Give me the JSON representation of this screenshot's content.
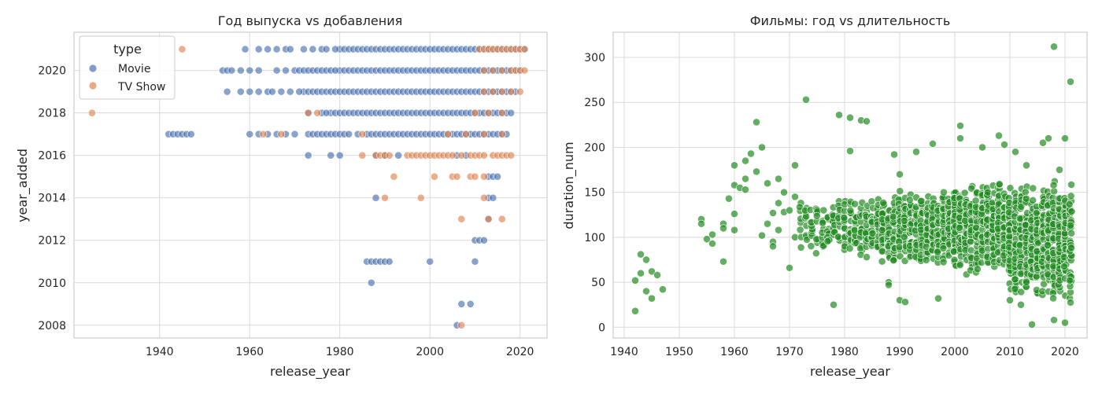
{
  "chart_data": [
    {
      "type": "scatter",
      "title": "Год выпуска vs добавления",
      "xlabel": "release_year",
      "ylabel": "year_added",
      "xlim": [
        1921,
        2026
      ],
      "ylim": [
        2007.4,
        2021.8
      ],
      "xticks": [
        1940,
        1960,
        1980,
        2000,
        2020
      ],
      "yticks": [
        2008,
        2010,
        2012,
        2014,
        2016,
        2018,
        2020
      ],
      "grid": true,
      "legend": {
        "title": "type",
        "placement": "top-left",
        "entries": [
          {
            "label": "Movie",
            "color": "#4c72b0"
          },
          {
            "label": "TV Show",
            "color": "#dd8452"
          }
        ]
      },
      "series": [
        {
          "name": "Movie",
          "color": "#4c72b0",
          "segments": [
            {
              "y": 2021,
              "x_from": 1980,
              "x_to": 2021
            },
            {
              "y": 2020,
              "x_from": 1980,
              "x_to": 2020
            },
            {
              "y": 2019,
              "x_from": 1972,
              "x_to": 2019
            },
            {
              "y": 2018,
              "x_from": 1978,
              "x_to": 2018
            },
            {
              "y": 2017,
              "x_from": 1986,
              "x_to": 2017
            }
          ],
          "points": [
            [
              1959,
              2021
            ],
            [
              1962,
              2021
            ],
            [
              1964,
              2021
            ],
            [
              1966,
              2021
            ],
            [
              1968,
              2021
            ],
            [
              1969,
              2021
            ],
            [
              1972,
              2021
            ],
            [
              1974,
              2021
            ],
            [
              1976,
              2021
            ],
            [
              1977,
              2021
            ],
            [
              1979,
              2021
            ],
            [
              1954,
              2020
            ],
            [
              1955,
              2020
            ],
            [
              1956,
              2020
            ],
            [
              1958,
              2020
            ],
            [
              1960,
              2020
            ],
            [
              1962,
              2020
            ],
            [
              1966,
              2020
            ],
            [
              1968,
              2020
            ],
            [
              1970,
              2020
            ],
            [
              1971,
              2020
            ],
            [
              1972,
              2020
            ],
            [
              1973,
              2020
            ],
            [
              1974,
              2020
            ],
            [
              1975,
              2020
            ],
            [
              1976,
              2020
            ],
            [
              1977,
              2020
            ],
            [
              1978,
              2020
            ],
            [
              1979,
              2020
            ],
            [
              1955,
              2019
            ],
            [
              1958,
              2019
            ],
            [
              1960,
              2019
            ],
            [
              1962,
              2019
            ],
            [
              1964,
              2019
            ],
            [
              1965,
              2019
            ],
            [
              1967,
              2019
            ],
            [
              1969,
              2019
            ],
            [
              1971,
              2019
            ],
            [
              1973,
              2018
            ],
            [
              1976,
              2018
            ],
            [
              1977,
              2018
            ],
            [
              1942,
              2017
            ],
            [
              1943,
              2017
            ],
            [
              1944,
              2017
            ],
            [
              1945,
              2017
            ],
            [
              1946,
              2017
            ],
            [
              1947,
              2017
            ],
            [
              1960,
              2017
            ],
            [
              1962,
              2017
            ],
            [
              1964,
              2017
            ],
            [
              1966,
              2017
            ],
            [
              1968,
              2017
            ],
            [
              1970,
              2017
            ],
            [
              1973,
              2017
            ],
            [
              1974,
              2017
            ],
            [
              1975,
              2017
            ],
            [
              1976,
              2017
            ],
            [
              1977,
              2017
            ],
            [
              1978,
              2017
            ],
            [
              1979,
              2017
            ],
            [
              1980,
              2017
            ],
            [
              1981,
              2017
            ],
            [
              1982,
              2017
            ],
            [
              1984,
              2017
            ],
            [
              1973,
              2016
            ],
            [
              1978,
              2016
            ],
            [
              1980,
              2016
            ],
            [
              1988,
              2016
            ],
            [
              1990,
              2016
            ],
            [
              1993,
              2016
            ],
            [
              2006,
              2016
            ],
            [
              2008,
              2016
            ],
            [
              2013,
              2015
            ],
            [
              2014,
              2015
            ],
            [
              2015,
              2015
            ],
            [
              1988,
              2014
            ],
            [
              2013,
              2014
            ],
            [
              2014,
              2014
            ],
            [
              2013,
              2013
            ],
            [
              2010,
              2012
            ],
            [
              2011,
              2012
            ],
            [
              2012,
              2012
            ],
            [
              1986,
              2011
            ],
            [
              1987,
              2011
            ],
            [
              1988,
              2011
            ],
            [
              1989,
              2011
            ],
            [
              1990,
              2011
            ],
            [
              1991,
              2011
            ],
            [
              2000,
              2011
            ],
            [
              2010,
              2011
            ],
            [
              1987,
              2010
            ],
            [
              2007,
              2009
            ],
            [
              2009,
              2009
            ],
            [
              2006,
              2008
            ]
          ]
        },
        {
          "name": "TV Show",
          "color": "#dd8452",
          "points": [
            [
              1945,
              2021
            ],
            [
              2011,
              2021
            ],
            [
              2012,
              2021
            ],
            [
              2013,
              2021
            ],
            [
              2014,
              2021
            ],
            [
              2015,
              2021
            ],
            [
              2016,
              2021
            ],
            [
              2017,
              2021
            ],
            [
              2018,
              2021
            ],
            [
              2019,
              2021
            ],
            [
              2020,
              2021
            ],
            [
              2021,
              2021
            ],
            [
              2012,
              2020
            ],
            [
              2014,
              2020
            ],
            [
              2016,
              2020
            ],
            [
              2018,
              2020
            ],
            [
              2019,
              2020
            ],
            [
              2020,
              2020
            ],
            [
              2021,
              2020
            ],
            [
              2012,
              2019
            ],
            [
              2014,
              2019
            ],
            [
              2016,
              2019
            ],
            [
              2018,
              2019
            ],
            [
              2020,
              2019
            ],
            [
              1925,
              2018
            ],
            [
              1973,
              2018
            ],
            [
              1975,
              2018
            ],
            [
              2010,
              2018
            ],
            [
              2013,
              2018
            ],
            [
              2016,
              2018
            ],
            [
              1963,
              2017
            ],
            [
              1967,
              2017
            ],
            [
              1985,
              2017
            ],
            [
              2004,
              2017
            ],
            [
              2008,
              2017
            ],
            [
              2012,
              2017
            ],
            [
              2016,
              2017
            ],
            [
              1985,
              2016
            ],
            [
              1988,
              2016
            ],
            [
              1989,
              2016
            ],
            [
              1990,
              2016
            ],
            [
              1991,
              2016
            ],
            [
              1995,
              2016
            ],
            [
              1996,
              2016
            ],
            [
              1997,
              2016
            ],
            [
              1998,
              2016
            ],
            [
              1999,
              2016
            ],
            [
              2000,
              2016
            ],
            [
              2001,
              2016
            ],
            [
              2002,
              2016
            ],
            [
              2003,
              2016
            ],
            [
              2004,
              2016
            ],
            [
              2005,
              2016
            ],
            [
              2007,
              2016
            ],
            [
              2009,
              2016
            ],
            [
              2010,
              2016
            ],
            [
              2011,
              2016
            ],
            [
              2012,
              2016
            ],
            [
              2014,
              2016
            ],
            [
              2015,
              2016
            ],
            [
              2016,
              2016
            ],
            [
              2017,
              2016
            ],
            [
              2018,
              2016
            ],
            [
              1992,
              2015
            ],
            [
              2001,
              2015
            ],
            [
              2005,
              2015
            ],
            [
              2006,
              2015
            ],
            [
              2009,
              2015
            ],
            [
              2010,
              2015
            ],
            [
              2012,
              2015
            ],
            [
              1990,
              2014
            ],
            [
              1998,
              2014
            ],
            [
              2012,
              2014
            ],
            [
              2007,
              2013
            ],
            [
              2013,
              2013
            ],
            [
              2016,
              2013
            ],
            [
              2007,
              2008
            ]
          ]
        }
      ]
    },
    {
      "type": "scatter",
      "title": "Фильмы: год vs длительность",
      "xlabel": "release_year",
      "ylabel": "duration_num",
      "xlim": [
        1938,
        2024
      ],
      "ylim": [
        -12,
        328
      ],
      "xticks": [
        1940,
        1950,
        1960,
        1970,
        1980,
        1990,
        2000,
        2010,
        2020
      ],
      "yticks": [
        0,
        50,
        100,
        150,
        200,
        250,
        300
      ],
      "grid": true,
      "series": [
        {
          "color": "#228b22",
          "points": [
            [
              1942,
              18
            ],
            [
              1942,
              52
            ],
            [
              1943,
              81
            ],
            [
              1943,
              60
            ],
            [
              1944,
              75
            ],
            [
              1944,
              40
            ],
            [
              1945,
              32
            ],
            [
              1945,
              62
            ],
            [
              1946,
              58
            ],
            [
              1947,
              42
            ],
            [
              1954,
              120
            ],
            [
              1954,
              115
            ],
            [
              1955,
              98
            ],
            [
              1956,
              93
            ],
            [
              1956,
              103
            ],
            [
              1958,
              115
            ],
            [
              1958,
              110
            ],
            [
              1958,
              73
            ],
            [
              1959,
              143
            ],
            [
              1960,
              180
            ],
            [
              1960,
              158
            ],
            [
              1960,
              126
            ],
            [
              1960,
              108
            ],
            [
              1961,
              155
            ],
            [
              1962,
              185
            ],
            [
              1962,
              165
            ],
            [
              1962,
              153
            ],
            [
              1963,
              193
            ],
            [
              1964,
              228
            ],
            [
              1964,
              173
            ],
            [
              1965,
              200
            ],
            [
              1965,
              102
            ],
            [
              1966,
              160
            ],
            [
              1966,
              115
            ],
            [
              1967,
              127
            ],
            [
              1967,
              95
            ],
            [
              1967,
              90
            ],
            [
              1968,
              165
            ],
            [
              1968,
              138
            ],
            [
              1968,
              108
            ],
            [
              1969,
              150
            ],
            [
              1969,
              128
            ],
            [
              1970,
              130
            ],
            [
              1970,
              66
            ],
            [
              1971,
              180
            ],
            [
              1971,
              145
            ],
            [
              1971,
              100
            ],
            [
              1973,
              253
            ],
            [
              1978,
              25
            ],
            [
              1979,
              236
            ],
            [
              1981,
              233
            ],
            [
              1981,
              196
            ],
            [
              1983,
              230
            ],
            [
              1984,
              229
            ],
            [
              1988,
              50
            ],
            [
              1988,
              47
            ],
            [
              1989,
              192
            ],
            [
              1990,
              30
            ],
            [
              1990,
              170
            ],
            [
              1991,
              28
            ],
            [
              1993,
              195
            ],
            [
              1996,
              204
            ],
            [
              1997,
              32
            ],
            [
              2001,
              224
            ],
            [
              2001,
              210
            ],
            [
              2005,
              200
            ],
            [
              2008,
              213
            ],
            [
              2009,
              203
            ],
            [
              2011,
              195
            ],
            [
              2013,
              180
            ],
            [
              2016,
              205
            ],
            [
              2017,
              210
            ],
            [
              2018,
              312
            ],
            [
              2019,
              175
            ],
            [
              2020,
              210
            ],
            [
              2021,
              273
            ],
            [
              2014,
              3
            ],
            [
              2018,
              8
            ],
            [
              2020,
              5
            ],
            [
              2010,
              30
            ],
            [
              2012,
              25
            ]
          ],
          "dense_bands": [
            {
              "x_from": 1972,
              "x_to": 1987,
              "y_center": 110,
              "y_spread": 35
            },
            {
              "x_from": 1987,
              "x_to": 2000,
              "y_center": 110,
              "y_spread": 45
            },
            {
              "x_from": 2000,
              "x_to": 2010,
              "y_center": 110,
              "y_spread": 55
            },
            {
              "x_from": 2010,
              "x_to": 2021,
              "y_center": 95,
              "y_spread": 70
            }
          ]
        }
      ]
    }
  ]
}
